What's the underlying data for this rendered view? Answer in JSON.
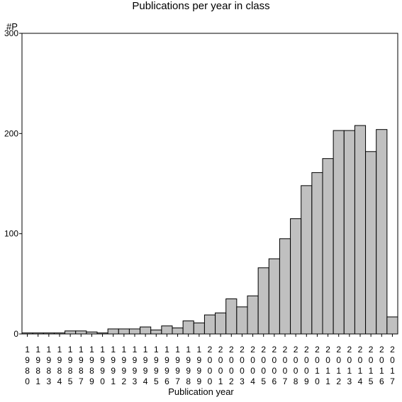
{
  "chart_data": {
    "type": "bar",
    "title": "Publications per year in class",
    "ylabel": "#P",
    "xlabel": "Publication year",
    "ylim": [
      0,
      300
    ],
    "yticks": [
      0,
      100,
      200,
      300
    ],
    "grid": false,
    "bar_color": "#c0c0c0",
    "categories": [
      "1980",
      "1981",
      "1983",
      "1984",
      "1985",
      "1987",
      "1989",
      "1990",
      "1991",
      "1992",
      "1993",
      "1994",
      "1995",
      "1996",
      "1997",
      "1998",
      "1999",
      "2000",
      "2001",
      "2002",
      "2003",
      "2004",
      "2005",
      "2006",
      "2007",
      "2008",
      "2009",
      "2010",
      "2011",
      "2012",
      "2013",
      "2014",
      "2015",
      "2016",
      "2017"
    ],
    "values": [
      1,
      1,
      1,
      1,
      3,
      3,
      2,
      1,
      5,
      5,
      5,
      7,
      4,
      8,
      6,
      13,
      11,
      19,
      21,
      35,
      27,
      38,
      66,
      75,
      95,
      115,
      148,
      161,
      175,
      203,
      203,
      208,
      182,
      204,
      17
    ]
  }
}
